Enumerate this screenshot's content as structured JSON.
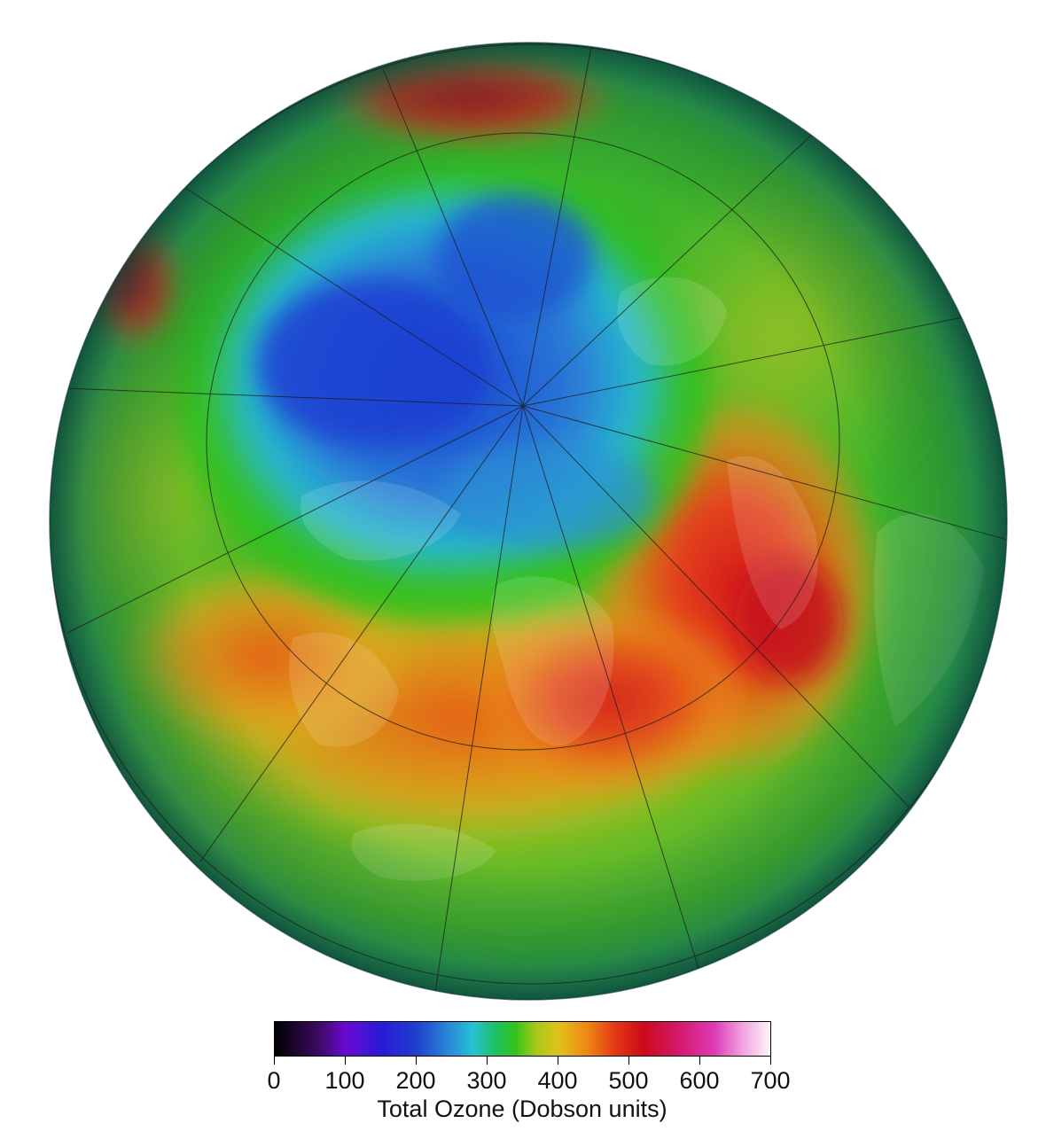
{
  "map": {
    "projection": "orthographic",
    "center": "north-pole",
    "graticule": true
  },
  "legend": {
    "title": "Total Ozone (Dobson units)",
    "min": 0,
    "max": 700,
    "ticks": [
      "0",
      "100",
      "200",
      "300",
      "400",
      "500",
      "600",
      "700"
    ],
    "tick_values": [
      0,
      100,
      200,
      300,
      400,
      500,
      600,
      700
    ],
    "colormap": [
      {
        "value": 0,
        "color": "#000000"
      },
      {
        "value": 60,
        "color": "#3a0a5e"
      },
      {
        "value": 100,
        "color": "#6a0ad0"
      },
      {
        "value": 150,
        "color": "#2a1ad8"
      },
      {
        "value": 200,
        "color": "#1f3fcc"
      },
      {
        "value": 250,
        "color": "#2a8fd8"
      },
      {
        "value": 280,
        "color": "#26c2d2"
      },
      {
        "value": 310,
        "color": "#1cc06a"
      },
      {
        "value": 340,
        "color": "#33c41a"
      },
      {
        "value": 370,
        "color": "#a9c81a"
      },
      {
        "value": 400,
        "color": "#e0c21a"
      },
      {
        "value": 440,
        "color": "#ee8a14"
      },
      {
        "value": 480,
        "color": "#e33a14"
      },
      {
        "value": 520,
        "color": "#cc0a1a"
      },
      {
        "value": 570,
        "color": "#d4186a"
      },
      {
        "value": 620,
        "color": "#dc3ab4"
      },
      {
        "value": 660,
        "color": "#f0a0e0"
      },
      {
        "value": 700,
        "color": "#fff4fa"
      }
    ]
  }
}
